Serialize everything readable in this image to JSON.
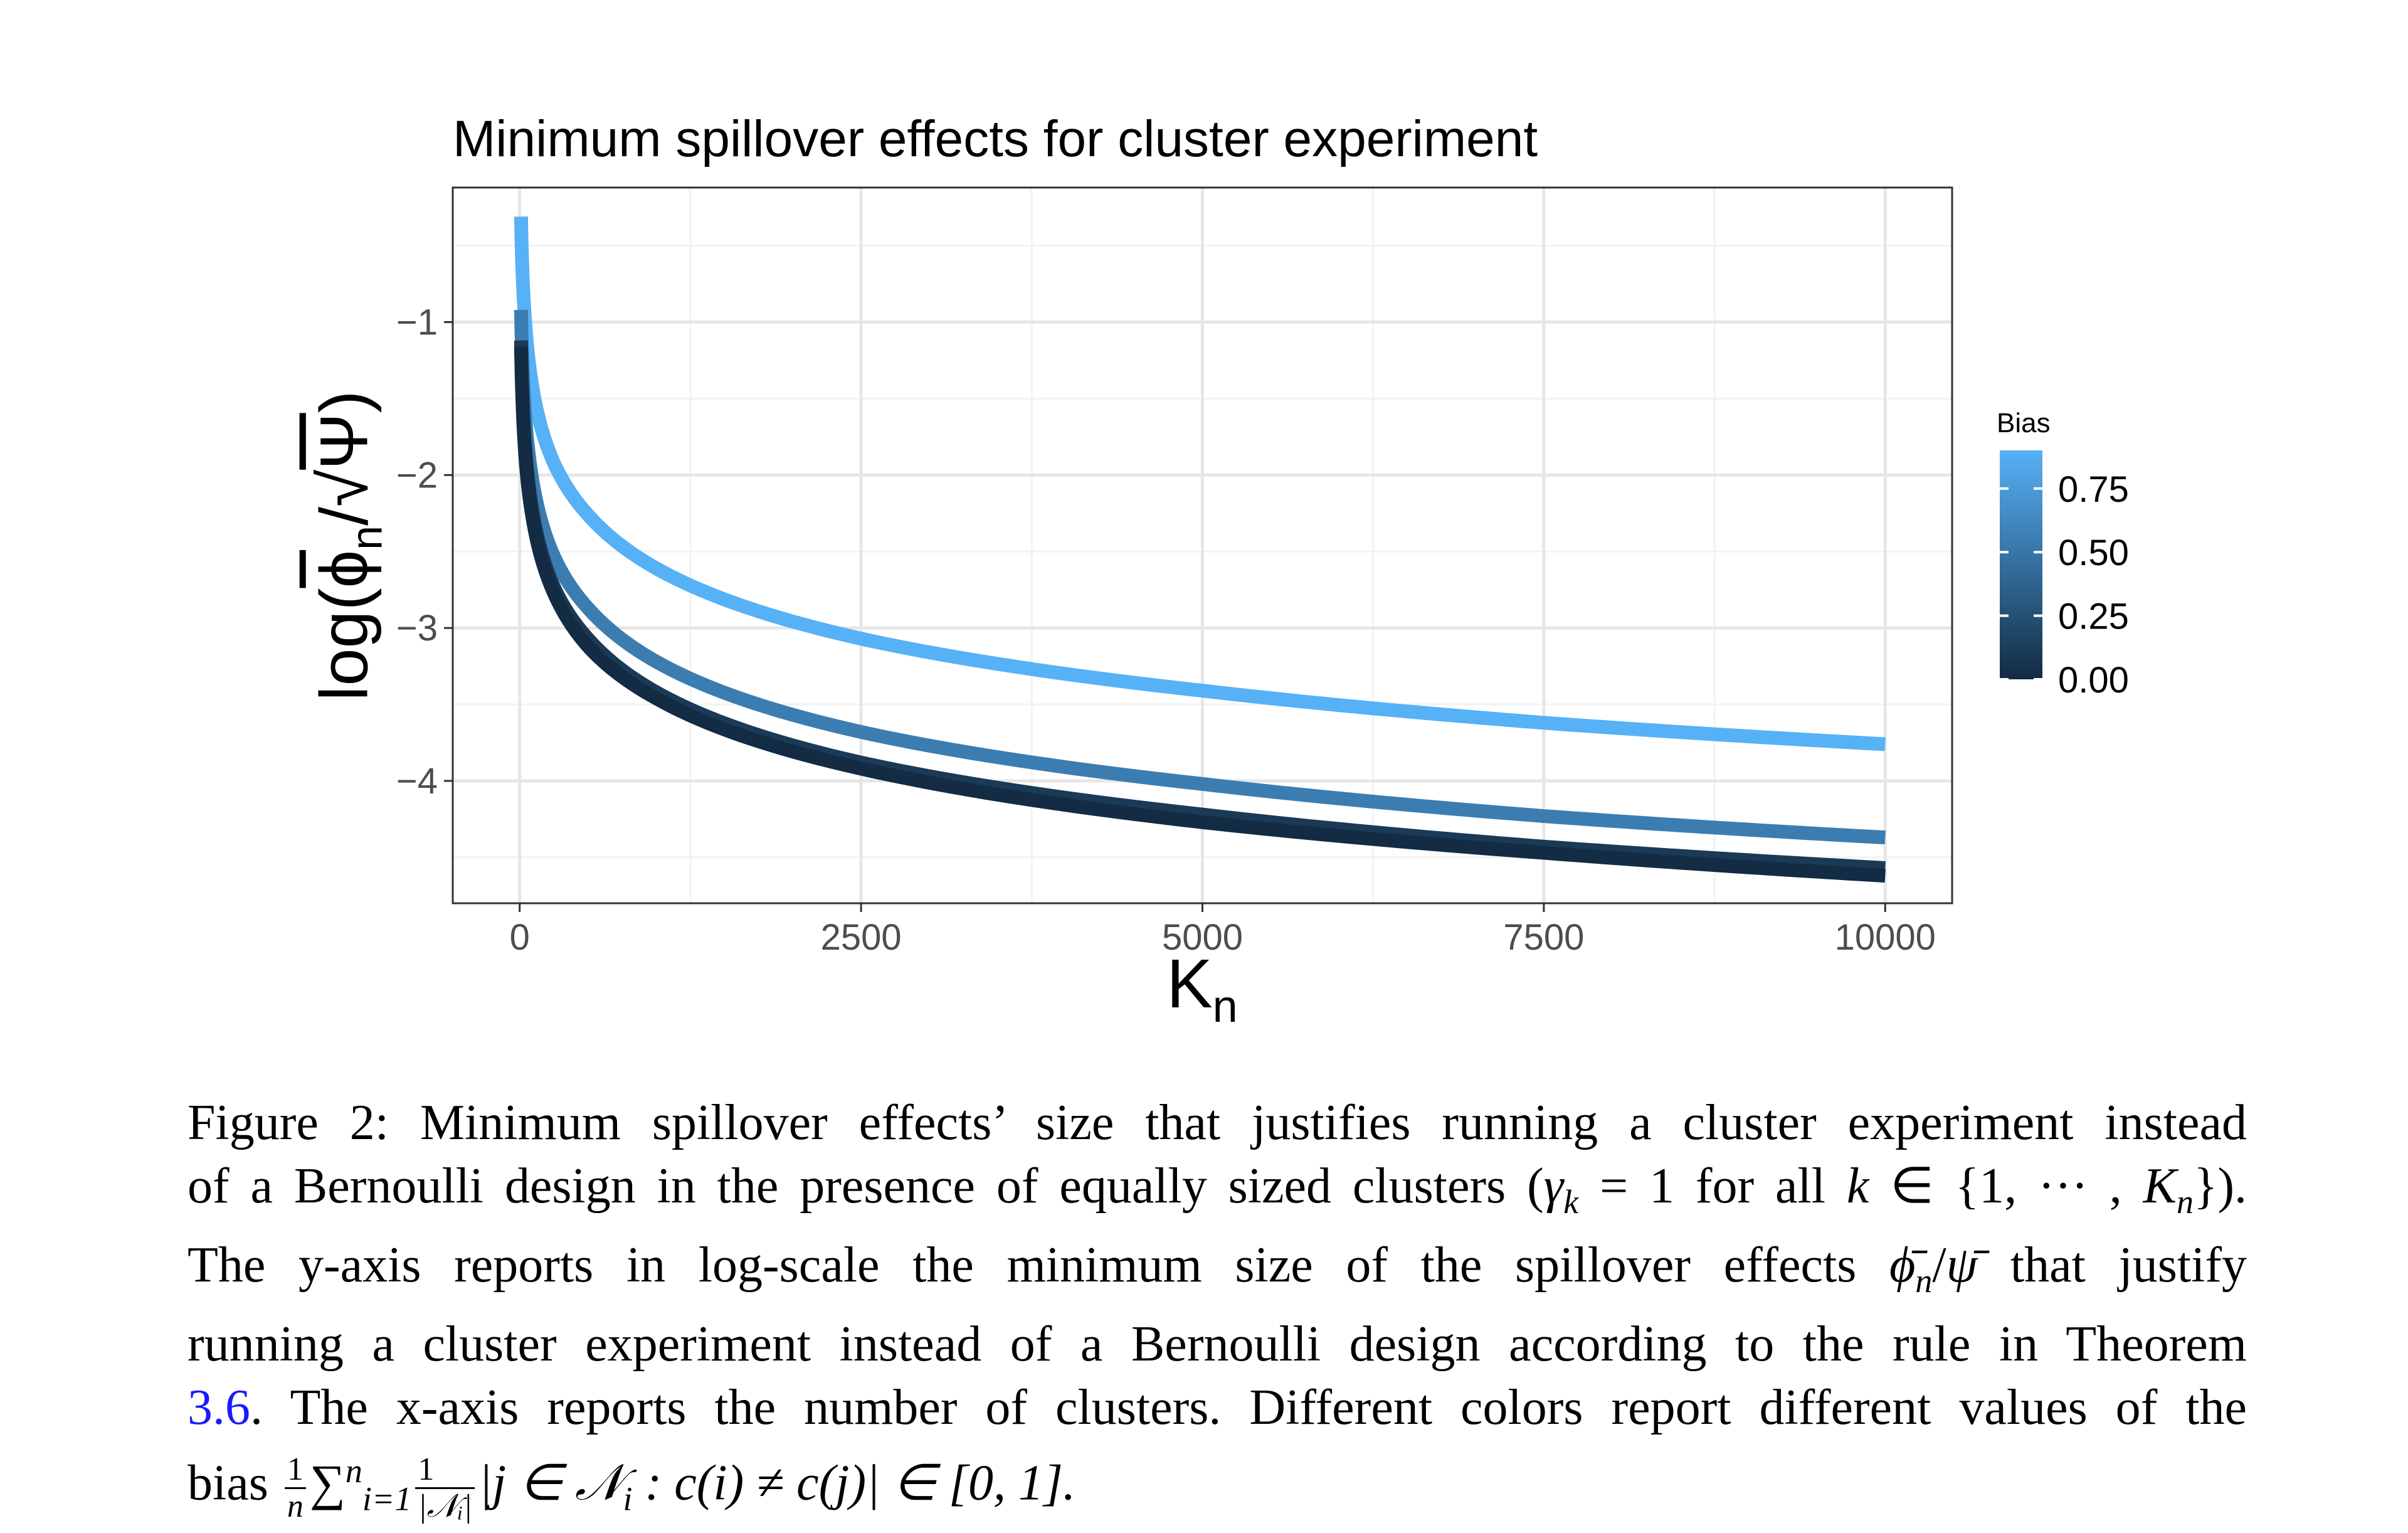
{
  "chart_data": {
    "type": "line",
    "title": "Minimum spillover effects for cluster experiment",
    "xlabel": {
      "base": "K",
      "sub": "n"
    },
    "ylabel": {
      "prefix": "log(",
      "phi": "ϕ",
      "phi_sub": "n",
      "slash": "/",
      "sqrt": "√",
      "psi": "Ψ",
      "suffix": ")"
    },
    "xlim": [
      -490,
      10490
    ],
    "ylim": [
      -4.8,
      -0.12
    ],
    "x_ticks": [
      0,
      2500,
      5000,
      7500,
      10000
    ],
    "x_tick_labels": [
      "0",
      "2500",
      "5000",
      "7500",
      "10000"
    ],
    "y_ticks": [
      -1,
      -2,
      -3,
      -4
    ],
    "y_tick_labels": [
      "−1",
      "−2",
      "−3",
      "−4"
    ],
    "grid": true,
    "x": [
      10,
      50,
      100,
      250,
      500,
      1000,
      2500,
      5000,
      7500,
      10000
    ],
    "series": [
      {
        "bias": 0.9,
        "values": [
          -0.31,
          -1.11,
          -1.46,
          -1.92,
          -2.26,
          -2.61,
          -3.07,
          -3.41,
          -3.62,
          -3.76
        ]
      },
      {
        "bias": 0.55,
        "values": [
          -0.92,
          -1.72,
          -2.07,
          -2.53,
          -2.87,
          -3.22,
          -3.68,
          -4.02,
          -4.23,
          -4.37
        ]
      },
      {
        "bias": 0.1,
        "values": [
          -1.12,
          -1.92,
          -2.27,
          -2.73,
          -3.07,
          -3.42,
          -3.88,
          -4.22,
          -4.43,
          -4.57
        ]
      },
      {
        "bias": 0.0,
        "values": [
          -1.16,
          -1.97,
          -2.31,
          -2.77,
          -3.12,
          -3.46,
          -3.92,
          -4.27,
          -4.47,
          -4.62
        ]
      }
    ],
    "legend": {
      "title": "Bias",
      "type": "colorbar",
      "placement": "right",
      "range": [
        0,
        0.9
      ],
      "ticks": [
        0.75,
        0.5,
        0.25,
        0.0
      ],
      "tick_labels": [
        "0.75",
        "0.50",
        "0.25",
        "0.00"
      ],
      "low_color": "#132B43",
      "high_color": "#56B1F7"
    }
  },
  "caption": {
    "l1": "Figure 2: Minimum spillover effects’ size that justifies running a cluster experiment instead",
    "l2a": "of a Bernoulli design in the presence of equally sized clusters (",
    "l2_gamma": "γ",
    "l2_k": "k",
    "l2b": " = 1 for all ",
    "l2_k2": "k",
    "l2c": " ∈ {1, ··· , ",
    "l2_K": "K",
    "l2_n": "n",
    "l2d": "}).",
    "l3a": "The y-axis reports in log-scale the minimum size of the spillover effects ",
    "l3_phi": "ϕ̄",
    "l3_n": "n",
    "l3_slash": "/",
    "l3_psi": "ψ̄",
    "l3b": " that justify",
    "l4": "running a cluster experiment instead of a Bernoulli design according to the rule in Theorem",
    "l5_ref": "3.6",
    "l5": ". The x-axis reports the number of clusters. Different colors report different values of the",
    "l6a": "bias ",
    "l6_f1_num": "1",
    "l6_f1_den": "n",
    "l6_sum": "∑",
    "l6_sum_sup": "n",
    "l6_sum_sub": "i=1",
    "l6_f2_num": "1",
    "l6_f2_den": "|𝒩ᵢ|",
    "l6b": "|j ∈ 𝒩",
    "l6_i": "i",
    "l6c": " : c(i) ≠ c(j)| ∈ [0, 1]."
  }
}
